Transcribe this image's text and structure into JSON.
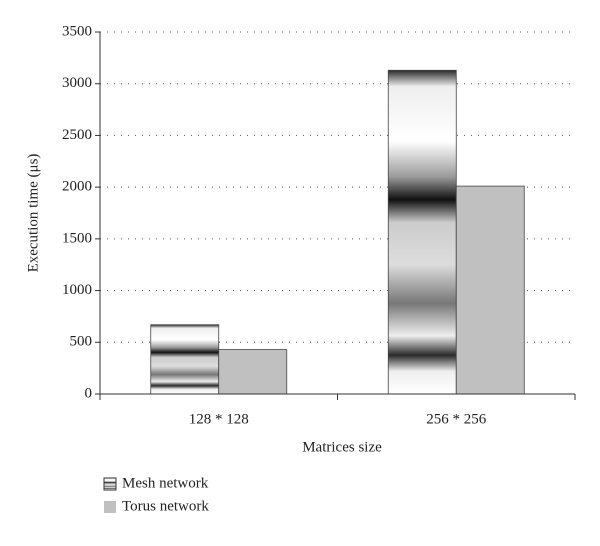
{
  "chart_data": {
    "type": "bar",
    "x_label": "Matrices size",
    "y_label": "Execution time (μs)",
    "categories": [
      "128 * 128",
      "256 * 256"
    ],
    "series": [
      {
        "name": "Mesh network",
        "color": "#2a2a2a",
        "values": [
          670,
          3130
        ]
      },
      {
        "name": "Torus network",
        "color": "#c0c0c0",
        "values": [
          430,
          2010
        ]
      }
    ],
    "ylim": [
      0,
      3500
    ],
    "yticks": [
      0,
      500,
      1000,
      1500,
      2000,
      2500,
      3000,
      3500
    ],
    "grid": true
  }
}
